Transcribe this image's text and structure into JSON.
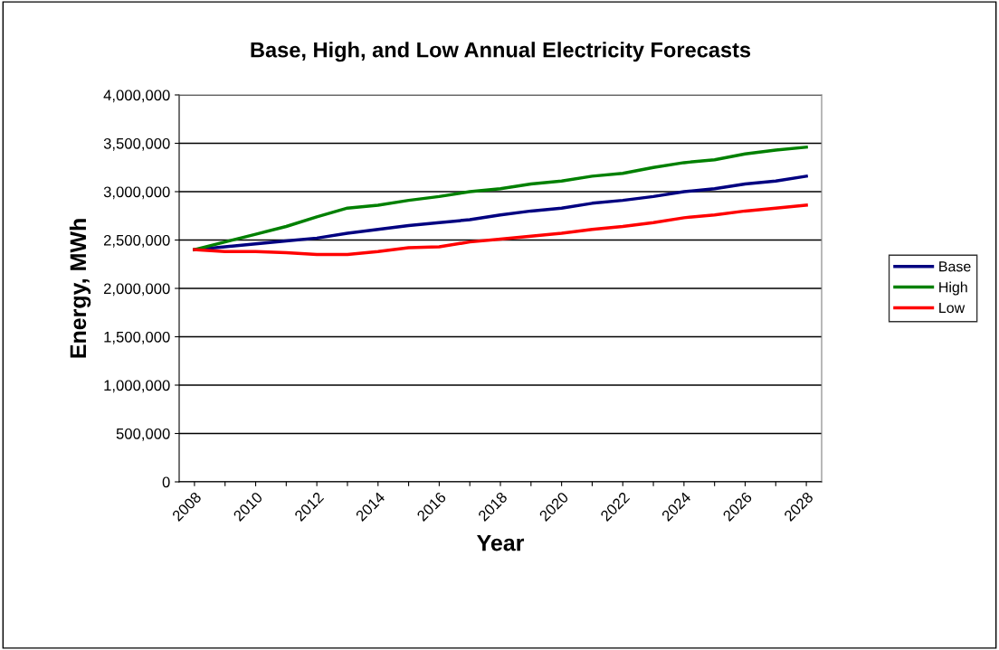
{
  "chart_data": {
    "type": "line",
    "title": "Base, High, and Low Annual Electricity Forecasts",
    "xlabel": "Year",
    "ylabel": "Energy, MWh",
    "categories": [
      "2008",
      null,
      "2010",
      null,
      "2012",
      null,
      "2014",
      null,
      "2016",
      null,
      "2018",
      null,
      "2020",
      null,
      "2022",
      null,
      "2024",
      null,
      "2026",
      null,
      "2028"
    ],
    "series": [
      {
        "name": "Base",
        "color": "#000080",
        "values": [
          2400000,
          2430000,
          2460000,
          2490000,
          2520000,
          2570000,
          2610000,
          2650000,
          2680000,
          2710000,
          2760000,
          2800000,
          2830000,
          2880000,
          2910000,
          2950000,
          3000000,
          3030000,
          3080000,
          3110000,
          3160000
        ]
      },
      {
        "name": "High",
        "color": "#008000",
        "values": [
          2400000,
          2480000,
          2560000,
          2640000,
          2740000,
          2830000,
          2860000,
          2910000,
          2950000,
          3000000,
          3030000,
          3080000,
          3110000,
          3160000,
          3190000,
          3250000,
          3300000,
          3330000,
          3390000,
          3430000,
          3460000
        ]
      },
      {
        "name": "Low",
        "color": "#ff0000",
        "values": [
          2400000,
          2380000,
          2380000,
          2370000,
          2350000,
          2350000,
          2380000,
          2420000,
          2430000,
          2480000,
          2510000,
          2540000,
          2570000,
          2610000,
          2640000,
          2680000,
          2730000,
          2760000,
          2800000,
          2830000,
          2860000
        ]
      }
    ],
    "ylim": [
      0,
      4000000
    ],
    "yticks": [
      0,
      {
        "value": 500000,
        "label": "500,000"
      },
      {
        "value": 1000000,
        "label": "1,000,000"
      },
      {
        "value": 1500000,
        "label": "1,500,000"
      },
      {
        "value": 2000000,
        "label": "2,000,000"
      },
      {
        "value": 2500000,
        "label": "2,500,000"
      },
      {
        "value": 3000000,
        "label": "3,000,000"
      },
      {
        "value": 3500000,
        "label": "3,500,000"
      },
      {
        "value": 4000000,
        "label": "4,000,000"
      }
    ],
    "grid": "y",
    "legend": "right",
    "marker": "none",
    "line_style": "solid"
  }
}
